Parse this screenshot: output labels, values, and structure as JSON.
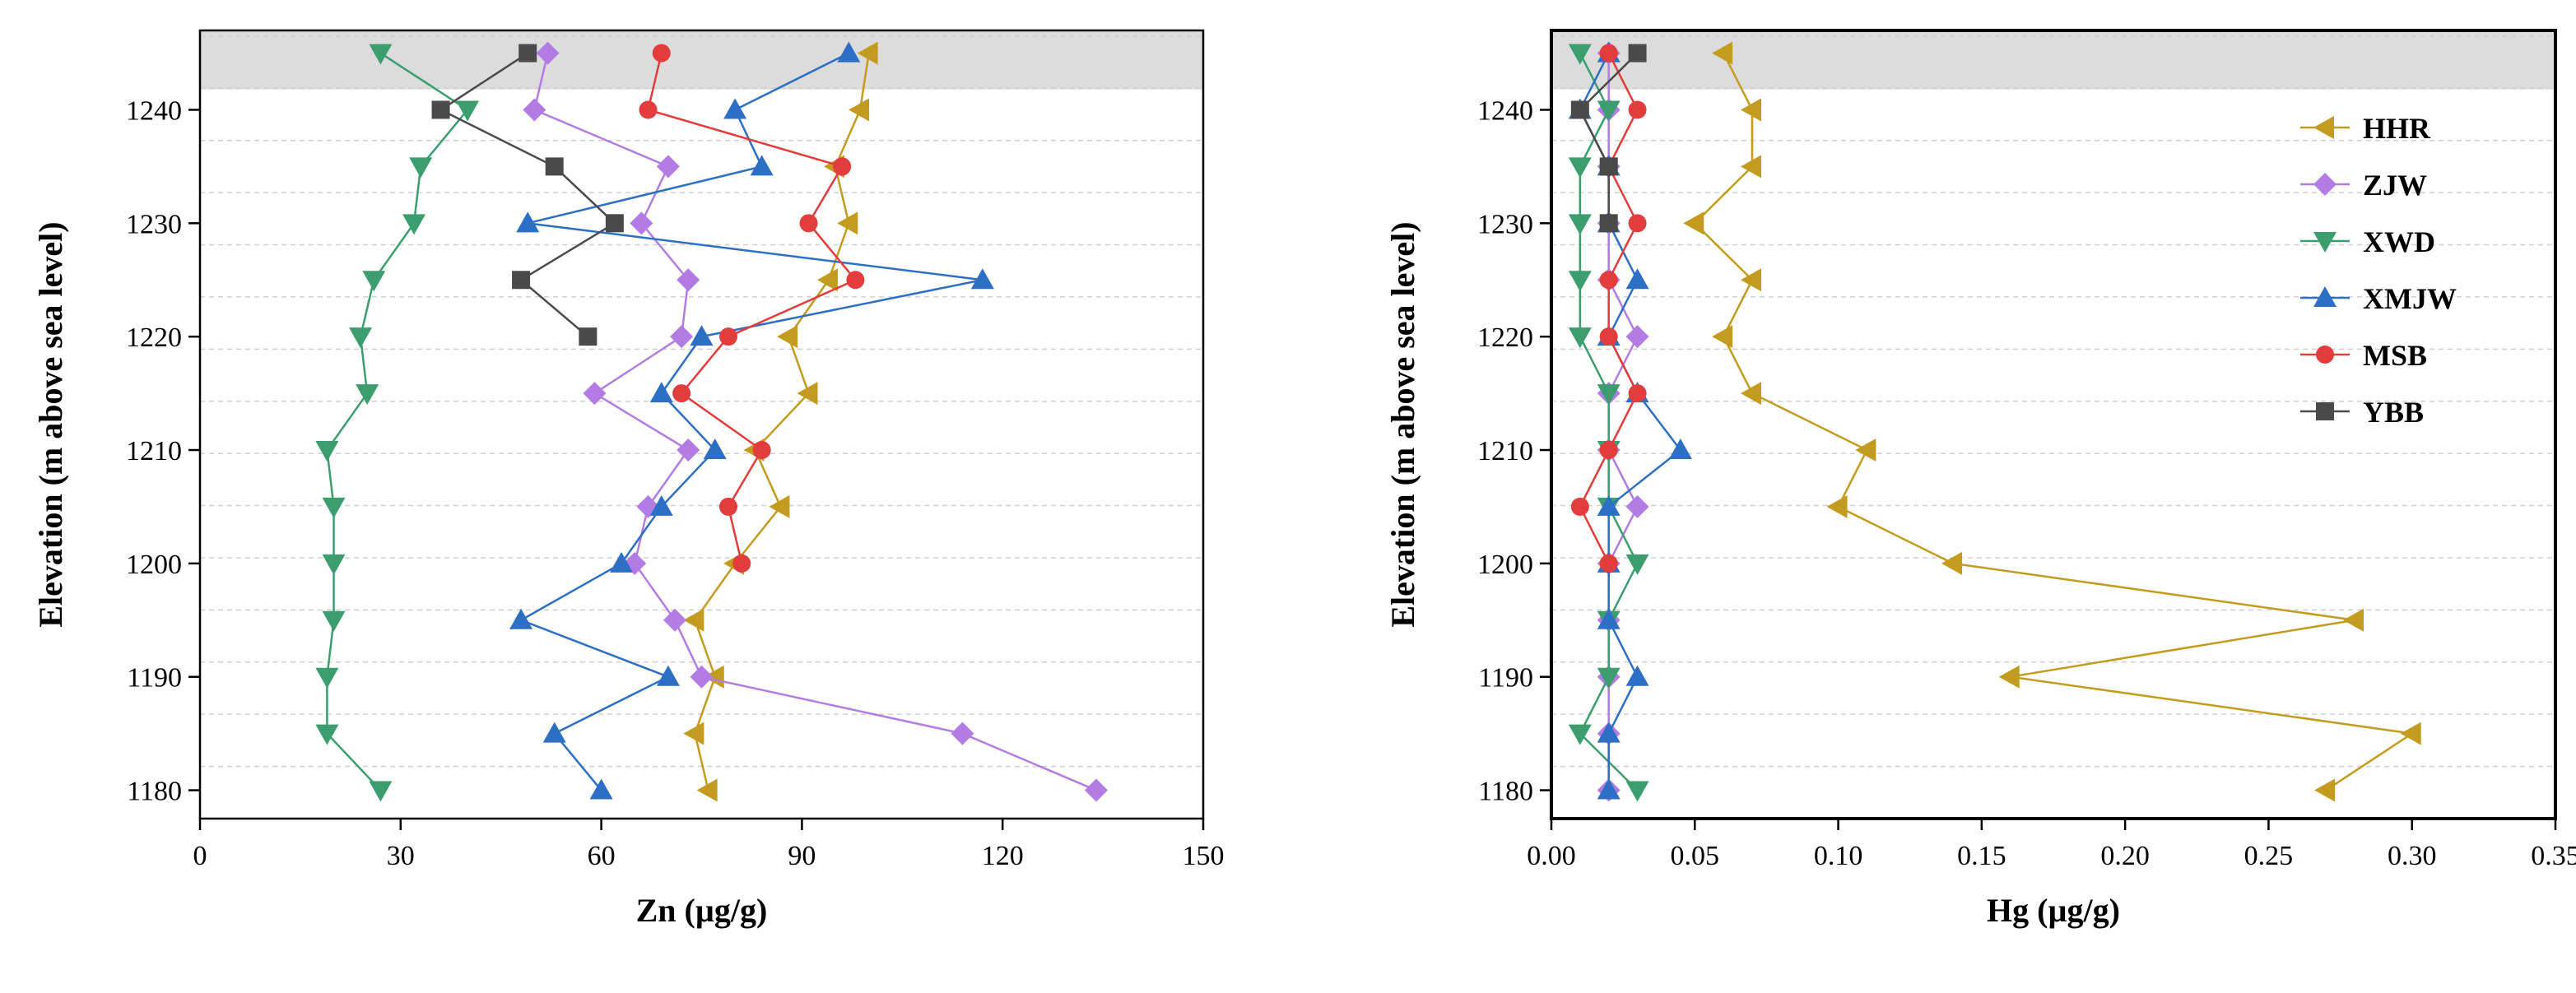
{
  "chart_data": [
    {
      "type": "line",
      "panel": "left",
      "xlabel": "Zn (µg/g)",
      "ylabel": "Elevation (m above sea level)",
      "xlim": [
        0,
        150
      ],
      "ylim": [
        1177.5,
        1247
      ],
      "xticks": [
        0,
        30,
        60,
        90,
        120,
        150
      ],
      "xtick_labels": [
        "0",
        "30",
        "60",
        "90",
        "120",
        "150"
      ],
      "yticks": [
        1180,
        1190,
        1200,
        1210,
        1220,
        1230,
        1240
      ],
      "ytick_labels": [
        "1180",
        "1190",
        "1200",
        "1210",
        "1220",
        "1230",
        "1240"
      ],
      "shaded_band": [
        1241.8,
        1247
      ],
      "series": [
        {
          "name": "HHR",
          "color": "#C39B1E",
          "marker": "triangle-left",
          "y": [
            1245,
            1240,
            1235,
            1230,
            1225,
            1220,
            1215,
            1210,
            1205,
            1200,
            1195,
            1190,
            1185,
            1180
          ],
          "x": [
            100,
            98.7,
            95,
            97,
            94,
            88,
            91,
            83,
            86.8,
            80,
            74,
            77,
            74,
            76
          ]
        },
        {
          "name": "ZJW",
          "color": "#B27CE4",
          "marker": "diamond",
          "y": [
            1245,
            1240,
            1235,
            1230,
            1225,
            1220,
            1215,
            1210,
            1205,
            1200,
            1195,
            1190,
            1185,
            1180
          ],
          "x": [
            52,
            50,
            70,
            66,
            73,
            72,
            59,
            73,
            67,
            65,
            71,
            75,
            114,
            134
          ]
        },
        {
          "name": "XWD",
          "color": "#3C9E6E",
          "marker": "triangle-down",
          "y": [
            1245,
            1240,
            1235,
            1230,
            1225,
            1220,
            1215,
            1210,
            1205,
            1200,
            1195,
            1190,
            1185,
            1180
          ],
          "x": [
            27,
            40,
            33,
            32,
            26,
            24,
            25,
            19,
            20,
            20,
            20,
            19,
            19,
            27
          ]
        },
        {
          "name": "XMJW",
          "color": "#2D6FC4",
          "marker": "triangle-up",
          "y": [
            1245,
            1240,
            1235,
            1230,
            1225,
            1220,
            1215,
            1210,
            1205,
            1200,
            1195,
            1190,
            1185,
            1180
          ],
          "x": [
            97,
            80,
            84,
            49,
            117,
            75,
            69,
            77,
            69,
            63,
            48,
            70,
            53,
            60
          ]
        },
        {
          "name": "MSB",
          "color": "#E23C3C",
          "marker": "circle",
          "y": [
            1245,
            1240,
            1235,
            1230,
            1225,
            1220,
            1215,
            1210,
            1205,
            1200
          ],
          "x": [
            69,
            67,
            96,
            91,
            98,
            79,
            72,
            84,
            79,
            81
          ]
        },
        {
          "name": "YBB",
          "color": "#4A4A4A",
          "marker": "square",
          "y": [
            1245,
            1240,
            1235,
            1230,
            1225,
            1220
          ],
          "x": [
            49,
            36,
            53,
            62,
            48,
            58
          ]
        }
      ]
    },
    {
      "type": "line",
      "panel": "right",
      "xlabel": "Hg (µg/g)",
      "ylabel": "Elevation (m above sea level)",
      "xlim": [
        0,
        0.35
      ],
      "ylim": [
        1177.5,
        1247
      ],
      "xticks": [
        0,
        0.05,
        0.1,
        0.15,
        0.2,
        0.25,
        0.3,
        0.35
      ],
      "xtick_labels": [
        "0.00",
        "0.05",
        "0.10",
        "0.15",
        "0.20",
        "0.25",
        "0.30",
        "0.35"
      ],
      "yticks": [
        1180,
        1190,
        1200,
        1210,
        1220,
        1230,
        1240
      ],
      "ytick_labels": [
        "1180",
        "1190",
        "1200",
        "1210",
        "1220",
        "1230",
        "1240"
      ],
      "shaded_band": [
        1241.8,
        1247
      ],
      "legend": {
        "position": "top-right",
        "entries": [
          "HHR",
          "ZJW",
          "XWD",
          "XMJW",
          "MSB",
          "YBB"
        ]
      },
      "series": [
        {
          "name": "HHR",
          "color": "#C39B1E",
          "marker": "triangle-left",
          "y": [
            1245,
            1240,
            1235,
            1230,
            1225,
            1220,
            1215,
            1210,
            1205,
            1200,
            1195,
            1190,
            1185,
            1180
          ],
          "x": [
            0.06,
            0.07,
            0.07,
            0.05,
            0.07,
            0.06,
            0.07,
            0.11,
            0.1,
            0.14,
            0.28,
            0.16,
            0.3,
            0.27
          ]
        },
        {
          "name": "ZJW",
          "color": "#B27CE4",
          "marker": "diamond",
          "y": [
            1245,
            1240,
            1235,
            1230,
            1225,
            1220,
            1215,
            1210,
            1205,
            1200,
            1195,
            1190,
            1185,
            1180
          ],
          "x": [
            0.02,
            0.02,
            0.02,
            0.02,
            0.02,
            0.03,
            0.02,
            0.02,
            0.03,
            0.02,
            0.02,
            0.02,
            0.02,
            0.02
          ]
        },
        {
          "name": "XWD",
          "color": "#3C9E6E",
          "marker": "triangle-down",
          "y": [
            1245,
            1240,
            1235,
            1230,
            1225,
            1220,
            1215,
            1210,
            1205,
            1200,
            1195,
            1190,
            1185,
            1180
          ],
          "x": [
            0.01,
            0.02,
            0.01,
            0.01,
            0.01,
            0.01,
            0.02,
            0.02,
            0.02,
            0.03,
            0.02,
            0.02,
            0.01,
            0.03
          ]
        },
        {
          "name": "XMJW",
          "color": "#2D6FC4",
          "marker": "triangle-up",
          "y": [
            1245,
            1240,
            1235,
            1230,
            1225,
            1220,
            1215,
            1210,
            1205,
            1200,
            1195,
            1190,
            1185,
            1180
          ],
          "x": [
            0.02,
            0.01,
            0.02,
            0.02,
            0.03,
            0.02,
            0.03,
            0.045,
            0.02,
            0.02,
            0.02,
            0.03,
            0.02,
            0.02
          ]
        },
        {
          "name": "MSB",
          "color": "#E23C3C",
          "marker": "circle",
          "y": [
            1245,
            1240,
            1235,
            1230,
            1225,
            1220,
            1215,
            1210,
            1205,
            1200
          ],
          "x": [
            0.02,
            0.03,
            0.02,
            0.03,
            0.02,
            0.02,
            0.03,
            0.02,
            0.01,
            0.02
          ]
        },
        {
          "name": "YBB",
          "color": "#4A4A4A",
          "marker": "square",
          "y": [
            1245,
            1240,
            1235,
            1230
          ],
          "x": [
            0.03,
            0.01,
            0.02,
            0.02
          ]
        }
      ]
    }
  ]
}
